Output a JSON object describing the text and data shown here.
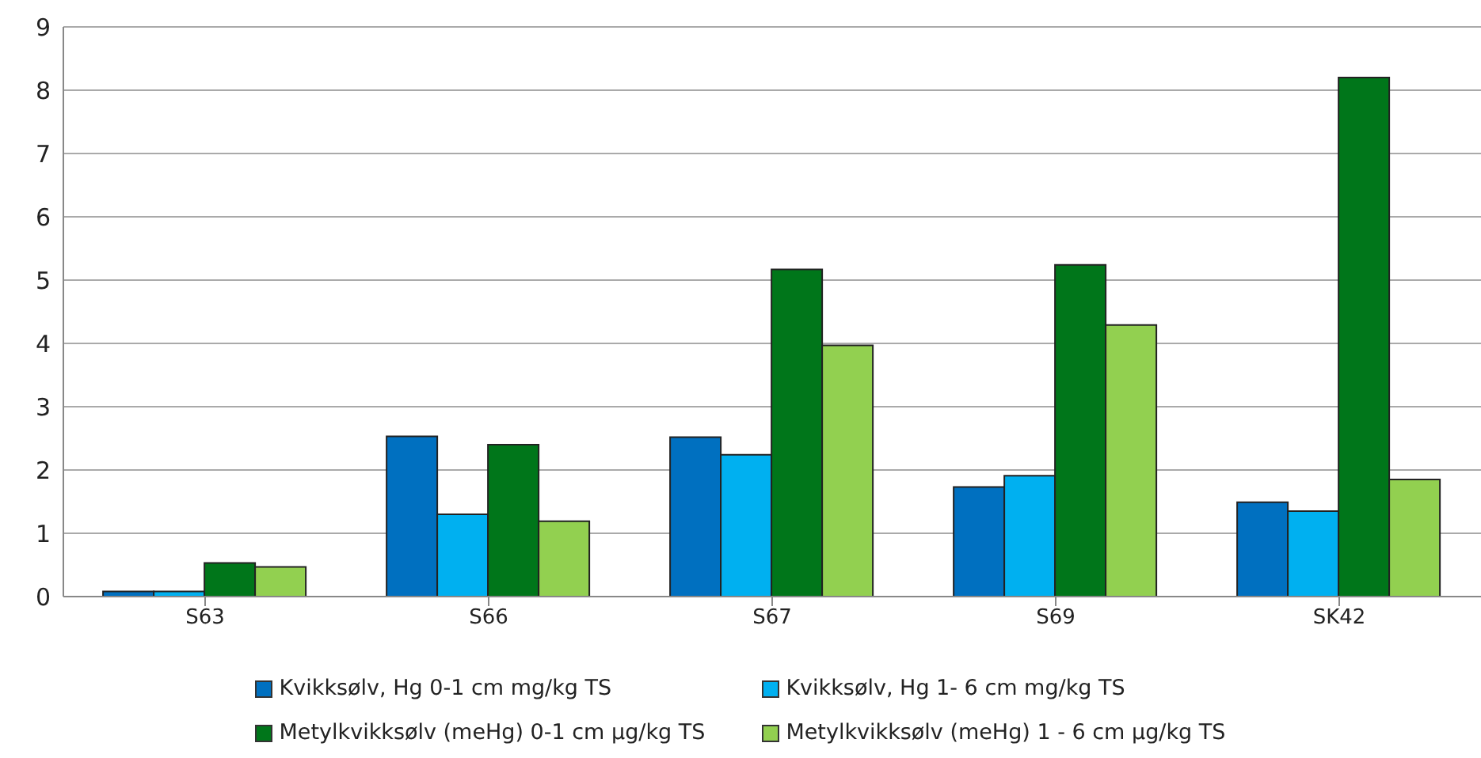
{
  "chart_data": {
    "type": "bar",
    "categories": [
      "S63",
      "S66",
      "S67",
      "S69",
      "SK42"
    ],
    "series": [
      {
        "name": "Kvikksølv, Hg 0-1 cm mg/kg TS",
        "color": "#0070c0",
        "values": [
          0.08,
          2.53,
          2.52,
          1.73,
          1.49
        ]
      },
      {
        "name": "Kvikksølv, Hg 1- 6 cm mg/kg TS",
        "color": "#00b0f0",
        "values": [
          0.08,
          1.3,
          2.24,
          1.91,
          1.35
        ]
      },
      {
        "name": "Metylkvikksølv (meHg) 0-1 cm µg/kg TS",
        "color": "#00761a",
        "values": [
          0.53,
          2.4,
          5.17,
          5.24,
          8.2
        ]
      },
      {
        "name": "Metylkvikksølv (meHg) 1 - 6 cm µg/kg TS",
        "color": "#92d050",
        "values": [
          0.47,
          1.19,
          3.97,
          4.29,
          1.85
        ]
      }
    ],
    "ylim": [
      0,
      9
    ],
    "yticks": [
      0,
      1,
      2,
      3,
      4,
      5,
      6,
      7,
      8,
      9
    ],
    "grid": "y",
    "legend": "bottom"
  }
}
